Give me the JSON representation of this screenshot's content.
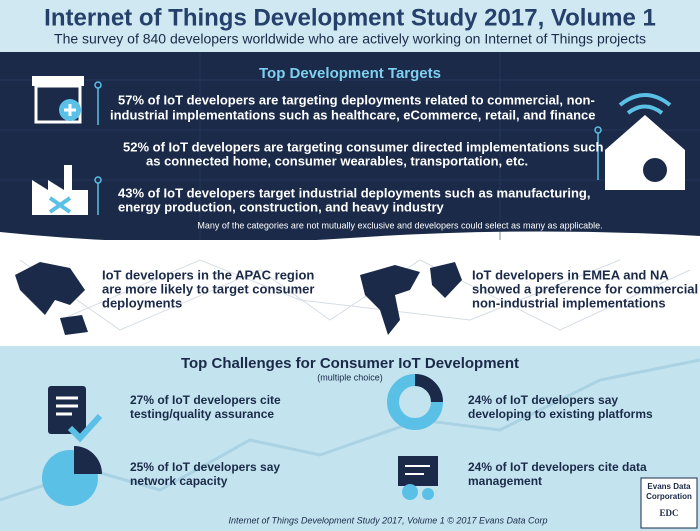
{
  "header": {
    "title": "Internet of Things Development Study 2017, Volume 1",
    "subtitle": "The survey of 840 developers worldwide who are actively working on Internet of Things projects"
  },
  "targets": {
    "title": "Top Development Targets",
    "items": [
      {
        "lines": [
          "57% of IoT developers are targeting deployments related to commercial, non-",
          "industrial implementations such as healthcare, eCommerce, retail, and finance"
        ]
      },
      {
        "lines": [
          "52% of IoT developers are targeting consumer directed implementations such",
          "as connected home, consumer wearables, transportation, etc."
        ]
      },
      {
        "lines": [
          "43% of IoT developers target industrial deployments such as manufacturing,",
          "energy production, construction, and heavy industry"
        ]
      }
    ],
    "note": "Many of the categories are not mutually exclusive and developers could select as many as applicable."
  },
  "regions": [
    {
      "lines": [
        "IoT developers in the APAC region",
        "are more likely to target consumer",
        "deployments"
      ]
    },
    {
      "lines": [
        "IoT developers in EMEA and NA",
        "showed a preference for commercial",
        "non-industrial implementations"
      ]
    }
  ],
  "challenges": {
    "title": "Top Challenges for Consumer IoT Development",
    "subtitle": "(multiple choice)",
    "items": [
      {
        "lines": [
          "27% of IoT developers cite",
          "testing/quality assurance"
        ]
      },
      {
        "lines": [
          "24% of IoT developers say",
          "developing to existing platforms"
        ]
      },
      {
        "lines": [
          "25% of IoT developers say",
          "network capacity"
        ]
      },
      {
        "lines": [
          "24% of IoT developers cite data",
          "management"
        ]
      }
    ]
  },
  "footer": "Internet of Things Development Study 2017, Volume 1 © 2017 Evans Data Corp",
  "logo": {
    "lines": [
      "Evans Data",
      "Corporation"
    ],
    "mark": "EDC"
  }
}
